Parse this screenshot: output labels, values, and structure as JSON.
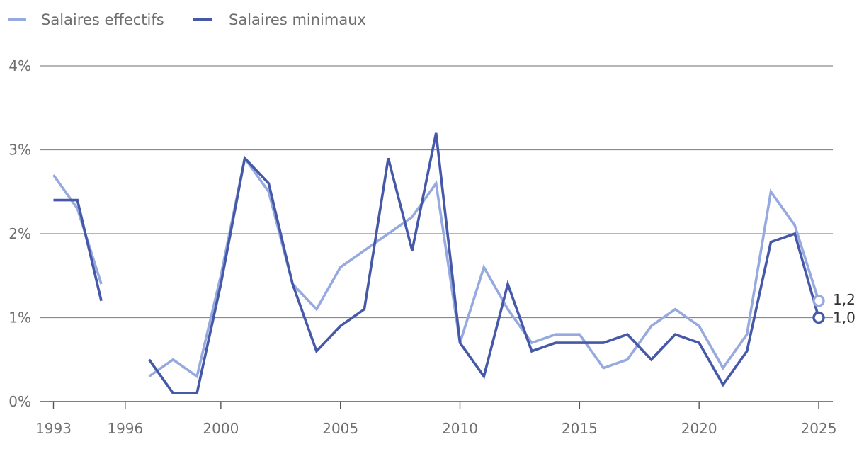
{
  "chart_data": {
    "type": "line",
    "title": "",
    "xlabel": "",
    "ylabel": "",
    "x": [
      1993,
      1994,
      1995,
      1996,
      1997,
      1998,
      1999,
      2000,
      2001,
      2002,
      2003,
      2004,
      2005,
      2006,
      2007,
      2008,
      2009,
      2010,
      2011,
      2012,
      2013,
      2014,
      2015,
      2016,
      2017,
      2018,
      2019,
      2020,
      2021,
      2022,
      2023,
      2024,
      2025
    ],
    "series": [
      {
        "name": "Salaires effectifs",
        "color": "#97aadf",
        "values": [
          2.7,
          2.3,
          1.4,
          null,
          0.3,
          0.5,
          0.3,
          1.5,
          2.9,
          2.5,
          1.4,
          1.1,
          1.6,
          1.8,
          2.0,
          2.2,
          2.6,
          0.7,
          1.6,
          1.1,
          0.7,
          0.8,
          0.8,
          0.4,
          0.5,
          0.9,
          1.1,
          0.9,
          0.4,
          0.8,
          2.5,
          2.1,
          1.2
        ]
      },
      {
        "name": "Salaires minimaux",
        "color": "#4559a8",
        "values": [
          2.4,
          2.4,
          1.2,
          null,
          0.5,
          0.1,
          0.1,
          1.4,
          2.9,
          2.6,
          1.4,
          0.6,
          0.9,
          1.1,
          2.9,
          1.8,
          3.2,
          0.7,
          0.3,
          1.4,
          0.6,
          0.7,
          0.7,
          0.7,
          0.8,
          0.5,
          0.8,
          0.7,
          0.2,
          0.6,
          1.9,
          2.0,
          1.0
        ]
      }
    ],
    "x_ticks": [
      1993,
      1996,
      2000,
      2005,
      2010,
      2015,
      2020,
      2025
    ],
    "x_tick_labels": [
      "1993",
      "1996",
      "2000",
      "2005",
      "2010",
      "2015",
      "2020",
      "2025"
    ],
    "y_ticks": [
      0,
      1,
      2,
      3,
      4
    ],
    "y_tick_labels": [
      "0%",
      "1%",
      "2%",
      "3%",
      "4%"
    ],
    "ylim": [
      0,
      4
    ],
    "xlim": [
      1993,
      2025
    ],
    "grid": true,
    "legend_position": "top-left",
    "end_labels": [
      "1,2",
      "1,0"
    ]
  }
}
